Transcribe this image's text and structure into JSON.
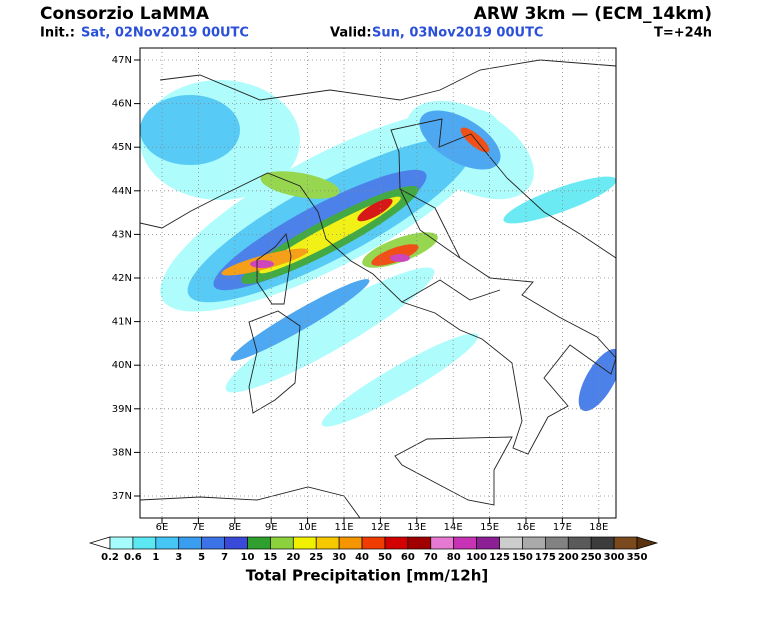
{
  "header": {
    "org": "Consorzio LaMMA",
    "init_label": "Init.:",
    "init_value": "Sat, 02Nov2019 00UTC",
    "valid_label": "Valid:",
    "valid_value": "Sun, 03Nov2019 00UTC",
    "model": "ARW 3km — (ECM_14km)",
    "lead": "T=+24h"
  },
  "map": {
    "lat_labels": [
      "47N",
      "46N",
      "45N",
      "44N",
      "43N",
      "42N",
      "41N",
      "40N",
      "39N",
      "38N",
      "37N"
    ],
    "lon_labels": [
      "6E",
      "7E",
      "8E",
      "9E",
      "10E",
      "11E",
      "12E",
      "13E",
      "14E",
      "15E",
      "16E",
      "17E",
      "18E"
    ]
  },
  "colorbar": {
    "title": "Total Precipitation [mm/12h]",
    "levels": [
      "0.2",
      "0.6",
      "1",
      "3",
      "5",
      "7",
      "10",
      "15",
      "20",
      "25",
      "30",
      "40",
      "50",
      "60",
      "70",
      "80",
      "100",
      "125",
      "150",
      "175",
      "200",
      "250",
      "300",
      "350"
    ],
    "colors": [
      "#ffffff",
      "#a6fcfc",
      "#5ce8f2",
      "#45c6f5",
      "#3a9ef0",
      "#3c74e8",
      "#3a4ad8",
      "#2fa02f",
      "#8cd23c",
      "#f0f000",
      "#f5c800",
      "#f59600",
      "#f03c00",
      "#d20000",
      "#a00000",
      "#e67ad2",
      "#c832b4",
      "#8c1e96",
      "#cdcdcd",
      "#aaaaaa",
      "#828282",
      "#5a5a5a",
      "#3c3c3c",
      "#7a4a1e",
      "#5a3210"
    ]
  }
}
